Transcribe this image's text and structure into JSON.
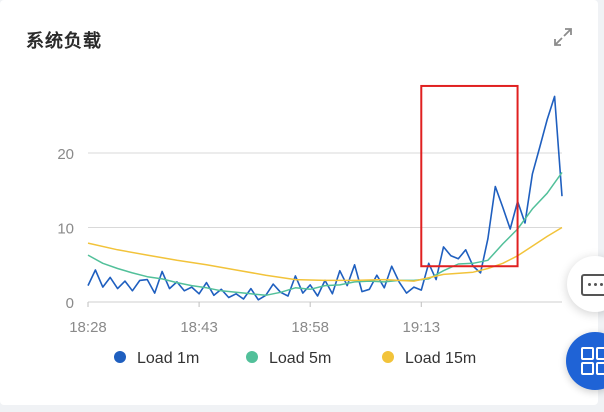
{
  "card": {
    "title": "系统负载"
  },
  "icons": {
    "expand": "expand-arrows-icon",
    "chat": "chat-bubble-icon",
    "apps": "apps-grid-icon"
  },
  "colors": {
    "load1": "#1f5fbf",
    "load5": "#52c09a",
    "load15": "#f2c33a",
    "highlight": "#e02020",
    "grid": "#d9d9d9",
    "fab": "#1f63d6"
  },
  "chart_data": {
    "type": "line",
    "title": "",
    "xlabel": "",
    "ylabel": "",
    "ylim": [
      0,
      30
    ],
    "yticks": [
      "0",
      "10",
      "20"
    ],
    "xticks": [
      "18:28",
      "18:43",
      "18:58",
      "19:13"
    ],
    "x_range_minutes": [
      0,
      64
    ],
    "legend_position": "bottom",
    "highlight_box": {
      "x_start_minutes": 45,
      "x_end_minutes": 58,
      "y_low": 4.8,
      "y_high": 29
    },
    "series": [
      {
        "name": "Load 1m",
        "color": "#1f5fbf",
        "x": [
          0,
          1,
          2,
          3,
          4,
          5,
          6,
          7,
          8,
          9,
          10,
          11,
          12,
          13,
          14,
          15,
          16,
          17,
          18,
          19,
          20,
          21,
          22,
          23,
          24,
          25,
          26,
          27,
          28,
          29,
          30,
          31,
          32,
          33,
          34,
          35,
          36,
          37,
          38,
          39,
          40,
          41,
          42,
          43,
          44,
          45,
          46,
          47,
          48,
          49,
          50,
          51,
          52,
          53,
          54,
          55,
          56,
          57,
          58,
          59,
          60,
          61,
          62,
          63,
          64
        ],
        "values": [
          2.2,
          4.3,
          2.0,
          3.3,
          1.8,
          2.8,
          1.5,
          2.9,
          3.0,
          1.2,
          4.1,
          1.8,
          2.7,
          1.5,
          2.0,
          1.1,
          2.6,
          0.9,
          1.7,
          0.6,
          1.1,
          0.4,
          1.8,
          0.3,
          0.9,
          2.4,
          1.3,
          0.8,
          3.5,
          1.2,
          2.3,
          0.8,
          2.9,
          1.1,
          4.2,
          2.2,
          5.0,
          1.4,
          1.7,
          3.6,
          1.9,
          4.8,
          2.7,
          1.2,
          2.0,
          1.6,
          5.2,
          3.0,
          7.4,
          6.2,
          5.8,
          7.0,
          4.8,
          3.9,
          8.5,
          15.5,
          12.7,
          9.8,
          13.5,
          10.6,
          17.2,
          20.8,
          24.5,
          27.6,
          14.2
        ]
      },
      {
        "name": "Load 5m",
        "color": "#52c09a",
        "x": [
          0,
          2,
          4,
          6,
          8,
          10,
          12,
          14,
          16,
          18,
          20,
          22,
          24,
          26,
          28,
          30,
          32,
          34,
          36,
          38,
          40,
          42,
          44,
          46,
          48,
          50,
          52,
          54,
          56,
          58,
          60,
          62,
          64
        ],
        "values": [
          6.3,
          5.2,
          4.5,
          3.9,
          3.4,
          3.1,
          2.6,
          2.2,
          1.9,
          1.5,
          1.3,
          1.1,
          0.9,
          1.3,
          1.9,
          1.7,
          2.2,
          2.3,
          2.7,
          2.8,
          2.7,
          2.9,
          2.9,
          3.1,
          4.2,
          5.1,
          5.2,
          5.6,
          7.8,
          9.8,
          12.5,
          14.6,
          17.4
        ]
      },
      {
        "name": "Load 15m",
        "color": "#f2c33a",
        "x": [
          0,
          4,
          8,
          12,
          16,
          20,
          24,
          28,
          32,
          36,
          40,
          44,
          48,
          52,
          54,
          56,
          58,
          60,
          62,
          64
        ],
        "values": [
          7.9,
          7.0,
          6.3,
          5.6,
          5.0,
          4.3,
          3.6,
          3.0,
          2.9,
          2.9,
          3.0,
          2.8,
          3.7,
          4.0,
          4.5,
          5.2,
          6.2,
          7.5,
          8.8,
          10.0
        ]
      }
    ]
  },
  "legend": {
    "items": [
      "Load 1m",
      "Load 5m",
      "Load 15m"
    ]
  }
}
